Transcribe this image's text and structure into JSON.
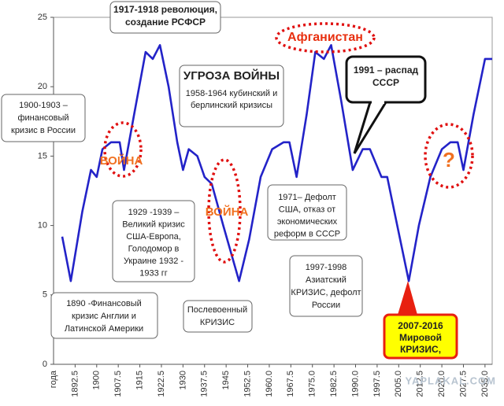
{
  "chart_data": {
    "type": "line",
    "xlabel": "года",
    "xlim": [
      1885,
      2037.5
    ],
    "ylim": [
      0,
      25
    ],
    "yticks": [
      0,
      5,
      10,
      15,
      20,
      25
    ],
    "xticks": [
      1892.5,
      1900,
      1907.5,
      1915,
      1922.5,
      1930,
      1937.5,
      1945,
      1952.5,
      {
        "value": 1960,
        "label": "1960.0"
      },
      1967.5,
      {
        "value": 1975,
        "label": "1975.0"
      },
      1982.5,
      {
        "value": 1990,
        "label": "1990.0"
      },
      1997.5,
      {
        "value": 2005,
        "label": "2005.0"
      },
      2012.5,
      {
        "value": 2020,
        "label": "2020.0"
      },
      2027.5,
      {
        "value": 2035,
        "label": "2035.0"
      }
    ],
    "series": [
      {
        "color": "#2323c8",
        "x": [
          1888,
          1891,
          1895,
          1898,
          1900,
          1902,
          1905,
          1908,
          1909.5,
          1913,
          1917,
          1919.5,
          1922,
          1925,
          1928,
          1930,
          1932,
          1935,
          1937.5,
          1940,
          1944,
          1949.5,
          1953,
          1957,
          1961,
          1965,
          1967,
          1969.5,
          1973,
          1976,
          1979,
          1981.5,
          1985,
          1989,
          1992.5,
          1995,
          1999,
          2001,
          2004,
          2008.5,
          2012,
          2016,
          2020,
          2023,
          2025.5,
          2027.5,
          2031,
          2035,
          2037.5
        ],
        "values": [
          9.2,
          6,
          11,
          14,
          13.5,
          15.5,
          16,
          16,
          14,
          18,
          22.5,
          22,
          23,
          20,
          16,
          14,
          15.5,
          15,
          13.5,
          13,
          10,
          6,
          9,
          13.5,
          15.5,
          16,
          16,
          13.5,
          18,
          22.5,
          22,
          23,
          19,
          14,
          15.5,
          15.5,
          13.5,
          13.5,
          10.5,
          6,
          10,
          13.5,
          15.5,
          16,
          16,
          14,
          18,
          22,
          22
        ]
      }
    ],
    "annotations": [
      {
        "lines": [
          "1917-1918 революция,",
          "создание РСФСР"
        ]
      },
      {
        "lines": [
          "Афганистан"
        ]
      },
      {
        "lines": [
          "УГРОЗА ВОЙНЫ",
          "1958-1964 кубинский и",
          "берлинский  кризисы"
        ]
      },
      {
        "lines": [
          "1991 – распад",
          "СССР"
        ]
      },
      {
        "lines": [
          "1900-1903 –",
          "финансовый",
          "кризис в России"
        ]
      },
      {
        "lines": [
          "ВОЙНА"
        ]
      },
      {
        "lines": [
          "1929 -1939 –",
          "Великий кризис",
          "США-Европа,",
          "Голодомор в",
          "Украине 1932 -",
          "1933 гг"
        ]
      },
      {
        "lines": [
          "ВОЙНА"
        ]
      },
      {
        "lines": [
          "1971– Дефолт",
          "США, отказ от",
          "экономических",
          "реформ в СССР"
        ]
      },
      {
        "lines": [
          "?"
        ]
      },
      {
        "lines": [
          "1890 -Финансовый",
          "кризис Англии и",
          "Латинской Америки"
        ]
      },
      {
        "lines": [
          "Послевоенный",
          "КРИЗИС"
        ]
      },
      {
        "lines": [
          "1997-1998",
          "Азиатский",
          "КРИЗИС, дефолт",
          "России"
        ]
      },
      {
        "lines": [
          "2007-2016",
          "Мировой",
          "КРИЗИС,"
        ]
      }
    ]
  },
  "watermark": "YAPLAKAL.COM"
}
